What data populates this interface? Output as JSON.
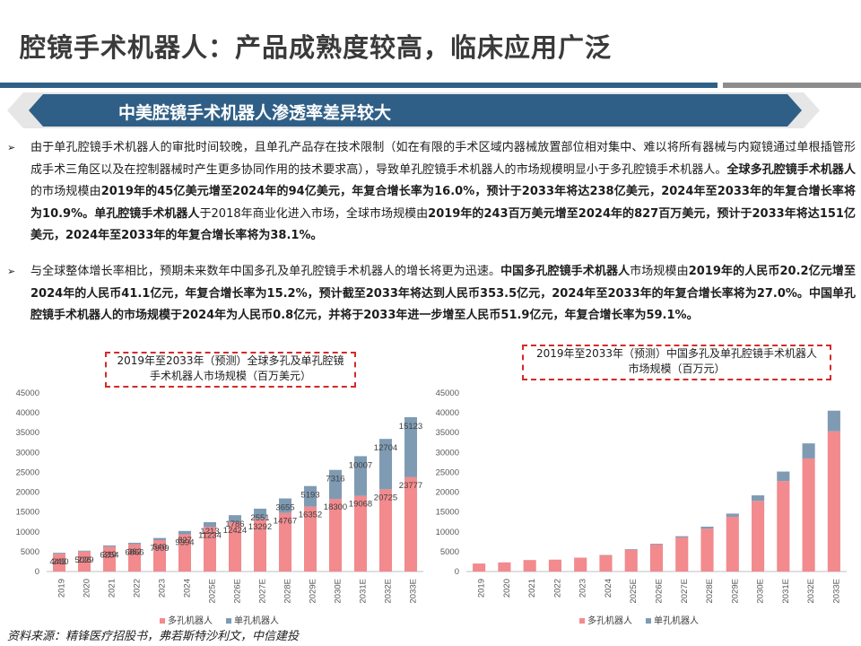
{
  "page_title": "腔镜手术机器人：产品成熟度较高，临床应用广泛",
  "banner_title": "中美腔镜手术机器人渗透率差异较大",
  "bullets": [
    {
      "segments": [
        {
          "text": "由于单孔腔镜手术机器人的审批时间较晚，且单孔产品存在技术限制（如在有限的手术区域内器械放置部位相对集中、难以将所有器械与内窥镜通过单根插管形成手术三角区以及在控制器械时产生更多协同作用的技术要求高），导致单孔腔镜手术机器人的市场规模明显小于多孔腔镜手术机器人。",
          "bold": false
        },
        {
          "text": "全球多孔腔镜手术机器人",
          "bold": true
        },
        {
          "text": "的市场规模由",
          "bold": false
        },
        {
          "text": "2019年的45亿美元增至2024年的94亿美元，年复合增长率为16.0%，预计于2033年将达238亿美元，2024年至2033年的年复合增长率将为10.9%。单孔腔镜手术机器人",
          "bold": true
        },
        {
          "text": "于2018年商业化进入市场，全球市场规模由",
          "bold": false
        },
        {
          "text": "2019年的243百万美元增至2024年的827百万美元，预计于2033年将达151亿美元，2024年至2033年的年复合增长率将为38.1%。",
          "bold": true
        }
      ]
    },
    {
      "segments": [
        {
          "text": "与全球整体增长率相比，预期未来数年中国多孔及单孔腔镜手术机器人的增长将更为迅速。",
          "bold": false
        },
        {
          "text": "中国多孔腔镜手术机器人",
          "bold": true
        },
        {
          "text": "市场规模由",
          "bold": false
        },
        {
          "text": "2019年的人民币20.2亿元增至2024年的人民币41.1亿元，年复合增长率为15.2%，预计截至2033年将达到人民币353.5亿元，2024年至2033年的年复合增长率将为27.0%。中国单孔腔镜手术机器人的市场规模于2024年为人民币0.8亿元，并将于2033年进一步增至人民币51.9亿元，年复合增长率为59.1%。",
          "bold": true
        }
      ]
    }
  ],
  "chart_titles": {
    "left": "2019年至2033年（预测）全球多孔及单孔腔镜手术机器人市场规模（百万美元）",
    "right": "2019年至2033年（预测）中国多孔及单孔腔镜手术机器人市场规模（百万元）"
  },
  "colors": {
    "multi": "#f28a8e",
    "single": "#7f9bb3",
    "title_rule": "#2f5f86",
    "banner": "#2f5f86"
  },
  "chart_data": [
    {
      "type": "bar",
      "stacked": true,
      "title": "2019年至2033年（预测）全球多孔及单孔腔镜手术机器人市场规模（百万美元）",
      "categories": [
        "2019",
        "2020",
        "2021",
        "2022",
        "2023",
        "2024",
        "2025E",
        "2026E",
        "2027E",
        "2028E",
        "2029E",
        "2030E",
        "2031E",
        "2032E",
        "2033E"
      ],
      "series": [
        {
          "name": "多孔机器人",
          "values": [
            4480,
            5029,
            6254,
            6866,
            7909,
            9394,
            11234,
            12424,
            13292,
            14767,
            16352,
            18300,
            19068,
            20725,
            23777
          ]
        },
        {
          "name": "单孔机器人",
          "values": [
            243,
            226,
            319,
            382,
            540,
            827,
            1213,
            1786,
            2551,
            3655,
            5193,
            7316,
            10007,
            12704,
            15123
          ]
        }
      ],
      "yticks": [
        0,
        5000,
        10000,
        15000,
        20000,
        25000,
        30000,
        35000,
        40000,
        45000
      ],
      "ylim": [
        0,
        45000
      ],
      "data_labels": true,
      "legend": "bottom"
    },
    {
      "type": "bar",
      "stacked": true,
      "title": "2019年至2033年（预测）中国多孔及单孔腔镜手术机器人市场规模（百万元）",
      "categories": [
        "2019",
        "2020",
        "2021",
        "2022",
        "2023",
        "2024",
        "2025E",
        "2026E",
        "2027E",
        "2028E",
        "2029E",
        "2030E",
        "2031E",
        "2032E",
        "2033E"
      ],
      "series": [
        {
          "name": "多孔机器人",
          "values": [
            2020,
            2300,
            2900,
            3000,
            3500,
            4110,
            5500,
            6800,
            8600,
            10800,
            13800,
            17800,
            22800,
            28500,
            35350
          ]
        },
        {
          "name": "单孔机器人",
          "values": [
            0,
            0,
            0,
            0,
            0,
            80,
            150,
            200,
            300,
            500,
            800,
            1400,
            2400,
            3800,
            5190
          ]
        }
      ],
      "yticks": [
        0,
        5000,
        10000,
        15000,
        20000,
        25000,
        30000,
        35000,
        40000,
        45000
      ],
      "ylim": [
        0,
        45000
      ],
      "data_labels": false,
      "legend": "bottom"
    }
  ],
  "source": "资料来源：精锋医疗招股书，弗若斯特沙利文，中信建投"
}
